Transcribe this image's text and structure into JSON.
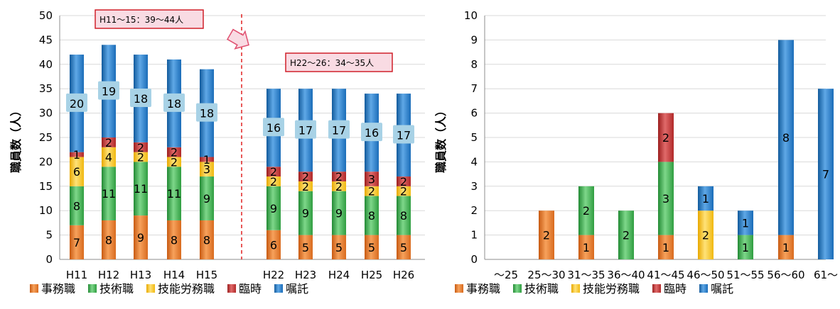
{
  "chart_data": [
    {
      "type": "bar",
      "stacked": true,
      "ylabel": "職員数（人）",
      "ylim": [
        0,
        50
      ],
      "yticks": [
        0,
        5,
        10,
        15,
        20,
        25,
        30,
        35,
        40,
        45,
        50
      ],
      "categories": [
        "H11",
        "H12",
        "H13",
        "H14",
        "H15",
        "H22",
        "H23",
        "H24",
        "H25",
        "H26"
      ],
      "series": [
        {
          "name": "事務職",
          "values": [
            7,
            8,
            9,
            8,
            8,
            6,
            5,
            5,
            5,
            5
          ]
        },
        {
          "name": "技術職",
          "values": [
            8,
            11,
            11,
            11,
            9,
            9,
            9,
            9,
            8,
            8
          ]
        },
        {
          "name": "技能労務職",
          "values": [
            6,
            4,
            2,
            2,
            3,
            2,
            2,
            2,
            2,
            2
          ]
        },
        {
          "name": "臨時",
          "values": [
            1,
            2,
            2,
            2,
            1,
            2,
            2,
            2,
            3,
            2
          ]
        },
        {
          "name": "嘱託",
          "values": [
            20,
            19,
            18,
            18,
            18,
            16,
            17,
            17,
            16,
            17
          ]
        }
      ],
      "colors": [
        "#e87a2c",
        "#3fb04d",
        "#f7c51d",
        "#c3302f",
        "#1f78c8"
      ],
      "annotations": [
        "H11〜15：39〜44人",
        "H22〜26：34〜35人"
      ],
      "grid": true,
      "legend_position": "bottom"
    },
    {
      "type": "bar",
      "stacked": true,
      "ylabel": "職員数（人）",
      "ylim": [
        0,
        10
      ],
      "yticks": [
        0,
        1,
        2,
        3,
        4,
        5,
        6,
        7,
        8,
        9,
        10
      ],
      "categories": [
        "〜25",
        "25〜30",
        "31〜35",
        "36〜40",
        "41〜45",
        "46〜50",
        "51〜55",
        "56〜60",
        "61〜"
      ],
      "series": [
        {
          "name": "事務職",
          "values": [
            0,
            2,
            1,
            0,
            1,
            0,
            0,
            1,
            0
          ]
        },
        {
          "name": "技術職",
          "values": [
            0,
            0,
            2,
            2,
            3,
            0,
            1,
            0,
            0
          ]
        },
        {
          "name": "技能労務職",
          "values": [
            0,
            0,
            0,
            0,
            0,
            2,
            0,
            0,
            0
          ]
        },
        {
          "name": "臨時",
          "values": [
            0,
            0,
            0,
            0,
            2,
            0,
            0,
            0,
            0
          ]
        },
        {
          "name": "嘱託",
          "values": [
            0,
            0,
            0,
            0,
            0,
            1,
            1,
            8,
            7
          ]
        }
      ],
      "colors": [
        "#e87a2c",
        "#3fb04d",
        "#f7c51d",
        "#c3302f",
        "#1f78c8"
      ],
      "grid": true,
      "legend_position": "bottom"
    }
  ]
}
